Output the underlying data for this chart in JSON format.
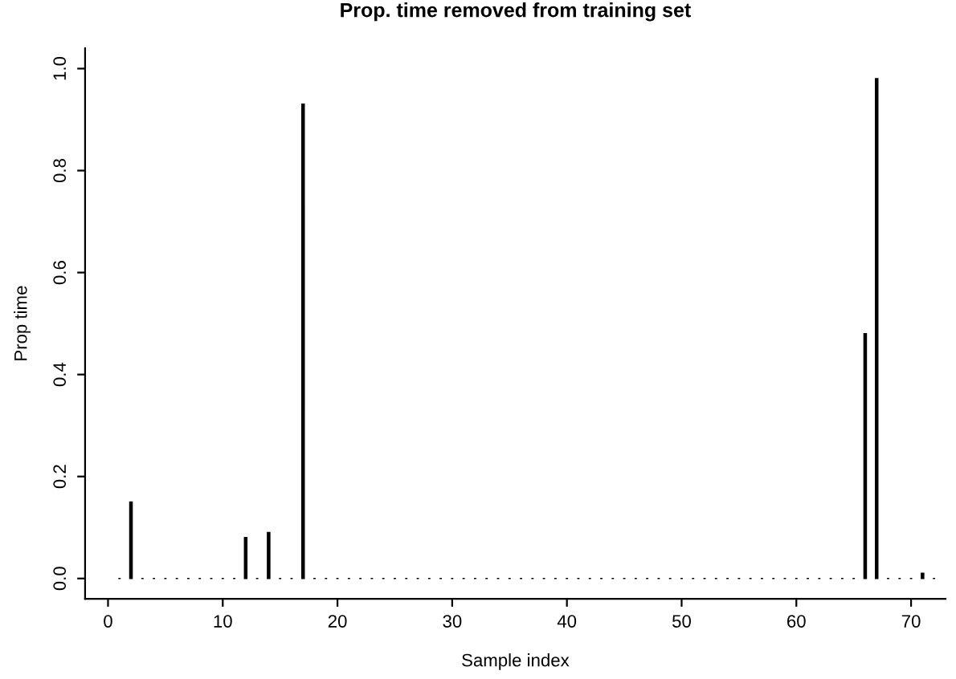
{
  "chart_data": {
    "type": "bar",
    "title": "Prop. time removed from training set",
    "xlabel": "Sample index",
    "ylabel": "Prop time",
    "x": [
      1,
      2,
      3,
      4,
      5,
      6,
      7,
      8,
      9,
      10,
      11,
      12,
      13,
      14,
      15,
      16,
      17,
      18,
      19,
      20,
      21,
      22,
      23,
      24,
      25,
      26,
      27,
      28,
      29,
      30,
      31,
      32,
      33,
      34,
      35,
      36,
      37,
      38,
      39,
      40,
      41,
      42,
      43,
      44,
      45,
      46,
      47,
      48,
      49,
      50,
      51,
      52,
      53,
      54,
      55,
      56,
      57,
      58,
      59,
      60,
      61,
      62,
      63,
      64,
      65,
      66,
      67,
      68,
      69,
      70,
      71,
      72
    ],
    "values": [
      0,
      0.15,
      0,
      0,
      0,
      0,
      0,
      0,
      0,
      0,
      0,
      0.08,
      0,
      0.09,
      0,
      0,
      0.93,
      0,
      0,
      0,
      0,
      0,
      0,
      0,
      0,
      0,
      0,
      0,
      0,
      0,
      0,
      0,
      0,
      0,
      0,
      0,
      0,
      0,
      0,
      0,
      0,
      0,
      0,
      0,
      0,
      0,
      0,
      0,
      0,
      0,
      0,
      0,
      0,
      0,
      0,
      0,
      0,
      0,
      0,
      0,
      0,
      0,
      0,
      0,
      0,
      0.48,
      0.98,
      0,
      0,
      0,
      0.01,
      0
    ],
    "color": "#000000",
    "xlim": [
      -2,
      73
    ],
    "xticks": [
      0,
      10,
      20,
      30,
      40,
      50,
      60,
      70
    ],
    "ylim": [
      -0.04,
      1.04
    ],
    "yticks": [
      {
        "value": 0,
        "label": "0.0"
      },
      {
        "value": 0.2,
        "label": "0.2"
      },
      {
        "value": 0.4,
        "label": "0.4"
      },
      {
        "value": 0.6,
        "label": "0.6"
      },
      {
        "value": 0.8,
        "label": "0.8"
      },
      {
        "value": 1,
        "label": "1.0"
      }
    ],
    "grid": false
  }
}
